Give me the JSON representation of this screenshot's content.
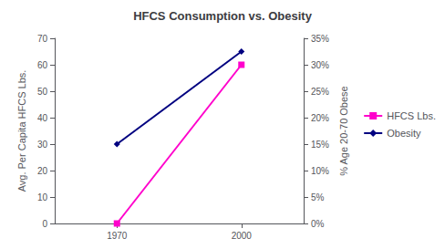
{
  "chart_data": {
    "type": "line",
    "title": "HFCS Consumption vs. Obesity",
    "ylabel": "Avg. Per Capita HFCS Lbs.",
    "y2label": "% Age 20-70 Obese",
    "x": [
      1970,
      2000
    ],
    "xlim": [
      1955,
      2015
    ],
    "xticks": [
      1970,
      2000
    ],
    "ylim": [
      0,
      70
    ],
    "yticks": [
      0,
      10,
      20,
      30,
      40,
      50,
      60,
      70
    ],
    "y2lim": [
      0,
      0.35
    ],
    "y2ticks": [
      {
        "value": 0,
        "label": "0%"
      },
      {
        "value": 0.05,
        "label": "5%"
      },
      {
        "value": 0.1,
        "label": "10%"
      },
      {
        "value": 0.15,
        "label": "15%"
      },
      {
        "value": 0.2,
        "label": "20%"
      },
      {
        "value": 0.25,
        "label": "25%"
      },
      {
        "value": 0.3,
        "label": "30%"
      },
      {
        "value": 0.35,
        "label": "35%"
      }
    ],
    "series": [
      {
        "name": "HFCS Lbs.",
        "color": "#ff00cc",
        "marker": "square",
        "values": [
          0,
          60
        ]
      },
      {
        "name": "Obesity",
        "color": "#000080",
        "marker": "diamond",
        "values": [
          0.15,
          0.325
        ],
        "axis": "y2"
      }
    ],
    "grid": false,
    "legend": "right"
  }
}
